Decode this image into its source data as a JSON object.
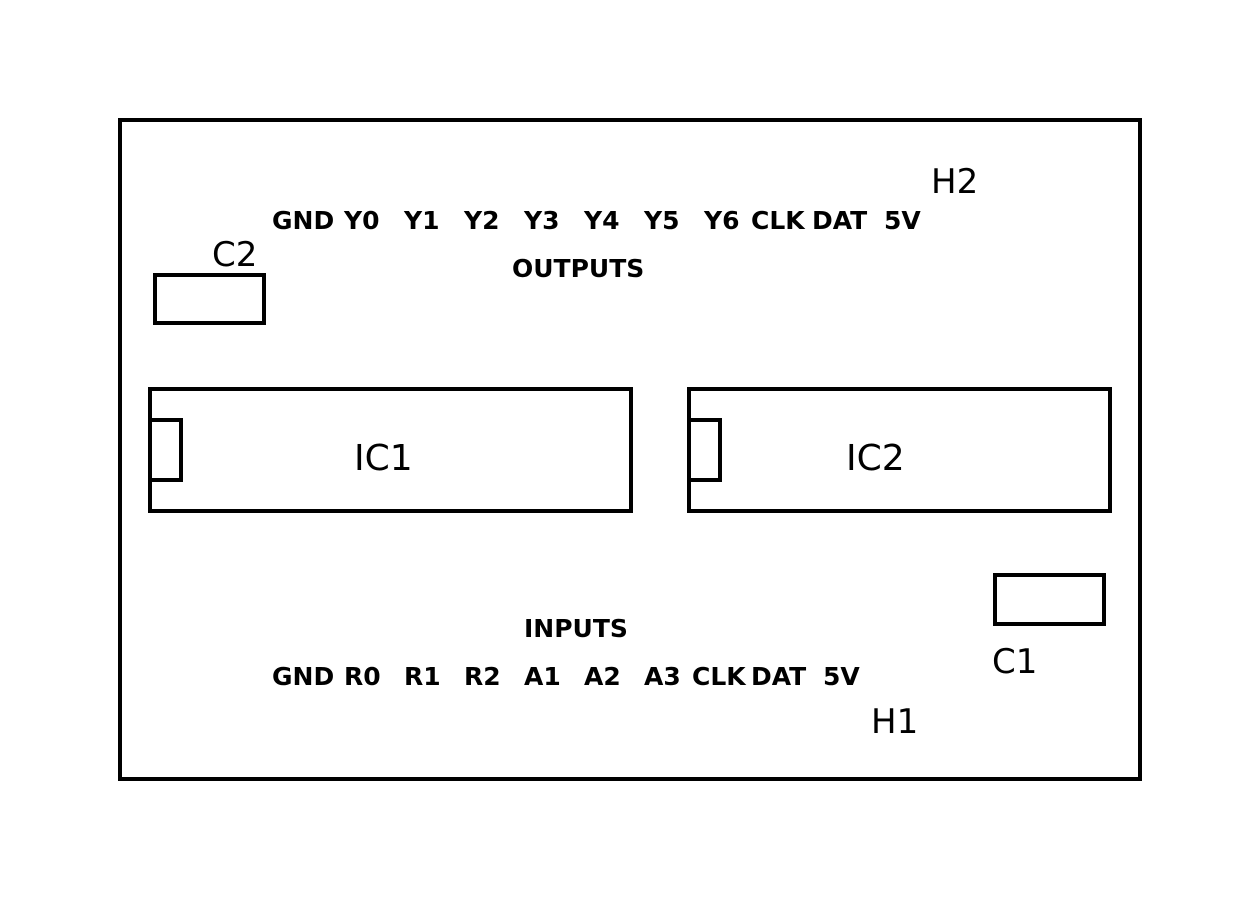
{
  "diagram": {
    "colors": {
      "stroke": "#000000",
      "background": "#ffffff"
    },
    "outputs": {
      "title": "OUTPUTS",
      "pins": [
        "GND",
        "Y0",
        "Y1",
        "Y2",
        "Y3",
        "Y4",
        "Y5",
        "Y6",
        "CLK",
        "DAT",
        "5V"
      ]
    },
    "inputs": {
      "title": "INPUTS",
      "pins": [
        "GND",
        "R0",
        "R1",
        "R2",
        "A1",
        "A2",
        "A3",
        "CLK",
        "DAT",
        "5V"
      ]
    },
    "components": {
      "ic1": "IC1",
      "ic2": "IC2",
      "c1": "C1",
      "c2": "C2",
      "h1": "H1",
      "h2": "H2"
    }
  }
}
